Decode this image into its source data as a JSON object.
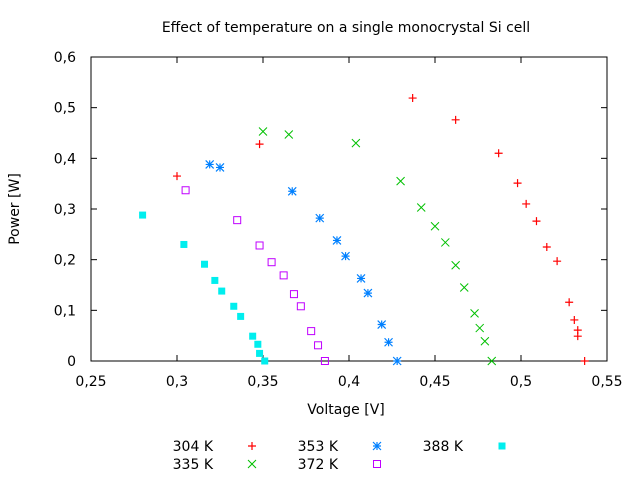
{
  "chart_data": {
    "type": "scatter",
    "title": "Effect of temperature on a single monocrystal Si cell",
    "xlabel": "Voltage [V]",
    "ylabel": "Power [W]",
    "xlim": [
      0.25,
      0.55
    ],
    "ylim": [
      0,
      0.6
    ],
    "xticks": [
      "0,25",
      "0,3",
      "0,35",
      "0,4",
      "0,45",
      "0,5",
      "0,55"
    ],
    "yticks": [
      "0",
      "0,1",
      "0,2",
      "0,3",
      "0,4",
      "0,5",
      "0,6"
    ],
    "grid": false,
    "legend_position": "bottom",
    "series": [
      {
        "name": "304 K",
        "marker": "plus",
        "color": "#ff0000",
        "x": [
          0.3,
          0.348,
          0.437,
          0.462,
          0.487,
          0.498,
          0.503,
          0.509,
          0.515,
          0.521,
          0.528,
          0.531,
          0.533,
          0.533,
          0.537
        ],
        "y": [
          0.365,
          0.428,
          0.519,
          0.476,
          0.41,
          0.351,
          0.31,
          0.276,
          0.225,
          0.197,
          0.116,
          0.081,
          0.061,
          0.049,
          0.0
        ]
      },
      {
        "name": "335 K",
        "marker": "cross",
        "color": "#00c000",
        "x": [
          0.35,
          0.365,
          0.404,
          0.43,
          0.442,
          0.45,
          0.456,
          0.462,
          0.467,
          0.473,
          0.476,
          0.479,
          0.483
        ],
        "y": [
          0.453,
          0.447,
          0.43,
          0.355,
          0.303,
          0.266,
          0.234,
          0.189,
          0.145,
          0.094,
          0.065,
          0.039,
          0.0
        ]
      },
      {
        "name": "353 K",
        "marker": "star",
        "color": "#0080ff",
        "x": [
          0.319,
          0.325,
          0.367,
          0.383,
          0.393,
          0.398,
          0.407,
          0.411,
          0.419,
          0.423,
          0.428
        ],
        "y": [
          0.388,
          0.382,
          0.335,
          0.282,
          0.238,
          0.207,
          0.163,
          0.134,
          0.072,
          0.037,
          0.0
        ]
      },
      {
        "name": "372 K",
        "marker": "open-square",
        "color": "#c000ff",
        "x": [
          0.305,
          0.335,
          0.348,
          0.355,
          0.362,
          0.368,
          0.372,
          0.378,
          0.382,
          0.386
        ],
        "y": [
          0.337,
          0.278,
          0.228,
          0.195,
          0.169,
          0.132,
          0.108,
          0.059,
          0.031,
          0.0
        ]
      },
      {
        "name": "388 K",
        "marker": "filled-square",
        "color": "#00eeee",
        "x": [
          0.28,
          0.304,
          0.316,
          0.322,
          0.326,
          0.333,
          0.337,
          0.344,
          0.347,
          0.348,
          0.351
        ],
        "y": [
          0.288,
          0.23,
          0.191,
          0.159,
          0.138,
          0.108,
          0.088,
          0.049,
          0.033,
          0.015,
          0.0
        ]
      }
    ]
  }
}
